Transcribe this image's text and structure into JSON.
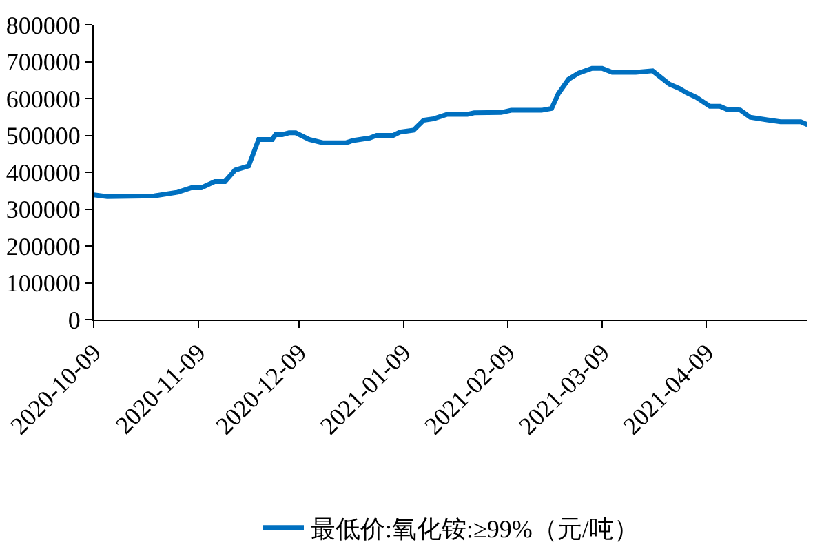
{
  "chart_data": {
    "type": "line",
    "x": [
      "2020-10-09",
      "2020-10-13",
      "2020-10-27",
      "2020-11-03",
      "2020-11-07",
      "2020-11-10",
      "2020-11-14",
      "2020-11-17",
      "2020-11-20",
      "2020-11-24",
      "2020-11-27",
      "2020-12-01",
      "2020-12-02",
      "2020-12-04",
      "2020-12-06",
      "2020-12-08",
      "2020-12-12",
      "2020-12-16",
      "2020-12-23",
      "2020-12-25",
      "2020-12-30",
      "2021-01-01",
      "2021-01-06",
      "2021-01-08",
      "2021-01-12",
      "2021-01-15",
      "2021-01-18",
      "2021-01-22",
      "2021-01-28",
      "2021-01-30",
      "2021-02-07",
      "2021-02-10",
      "2021-02-19",
      "2021-02-22",
      "2021-02-24",
      "2021-02-27",
      "2021-03-02",
      "2021-03-06",
      "2021-03-09",
      "2021-03-12",
      "2021-03-19",
      "2021-03-24",
      "2021-03-29",
      "2021-04-01",
      "2021-04-03",
      "2021-04-06",
      "2021-04-10",
      "2021-04-13",
      "2021-04-15",
      "2021-04-19",
      "2021-04-22",
      "2021-04-27",
      "2021-05-01",
      "2021-05-07",
      "2021-05-09"
    ],
    "series": [
      {
        "name": "最低价:氧化铵:≥99%（元/吨）",
        "color": "#0070c0",
        "values": [
          339000,
          334000,
          336000,
          346000,
          358000,
          358000,
          375000,
          375000,
          406000,
          417000,
          489000,
          489000,
          502000,
          502000,
          507000,
          507000,
          489000,
          480000,
          480000,
          486000,
          493000,
          500000,
          500000,
          509000,
          514000,
          541000,
          545000,
          557000,
          557000,
          561000,
          562000,
          568000,
          568000,
          573000,
          613000,
          652000,
          669000,
          682000,
          682000,
          671000,
          671000,
          675000,
          639000,
          627000,
          616000,
          603000,
          579000,
          579000,
          571000,
          569000,
          549000,
          542000,
          537000,
          537000,
          529000
        ]
      }
    ],
    "xlim": [
      "2020-10-09",
      "2021-05-09"
    ],
    "xticks": [
      "2020-10-09",
      "2020-11-09",
      "2020-12-09",
      "2021-01-09",
      "2021-02-09",
      "2021-03-09",
      "2021-04-09"
    ],
    "ylim": [
      0,
      800000
    ],
    "yticks": [
      0,
      100000,
      200000,
      300000,
      400000,
      500000,
      600000,
      700000,
      800000
    ],
    "legend": "bottom",
    "marker": "none",
    "line_style": "solid"
  }
}
